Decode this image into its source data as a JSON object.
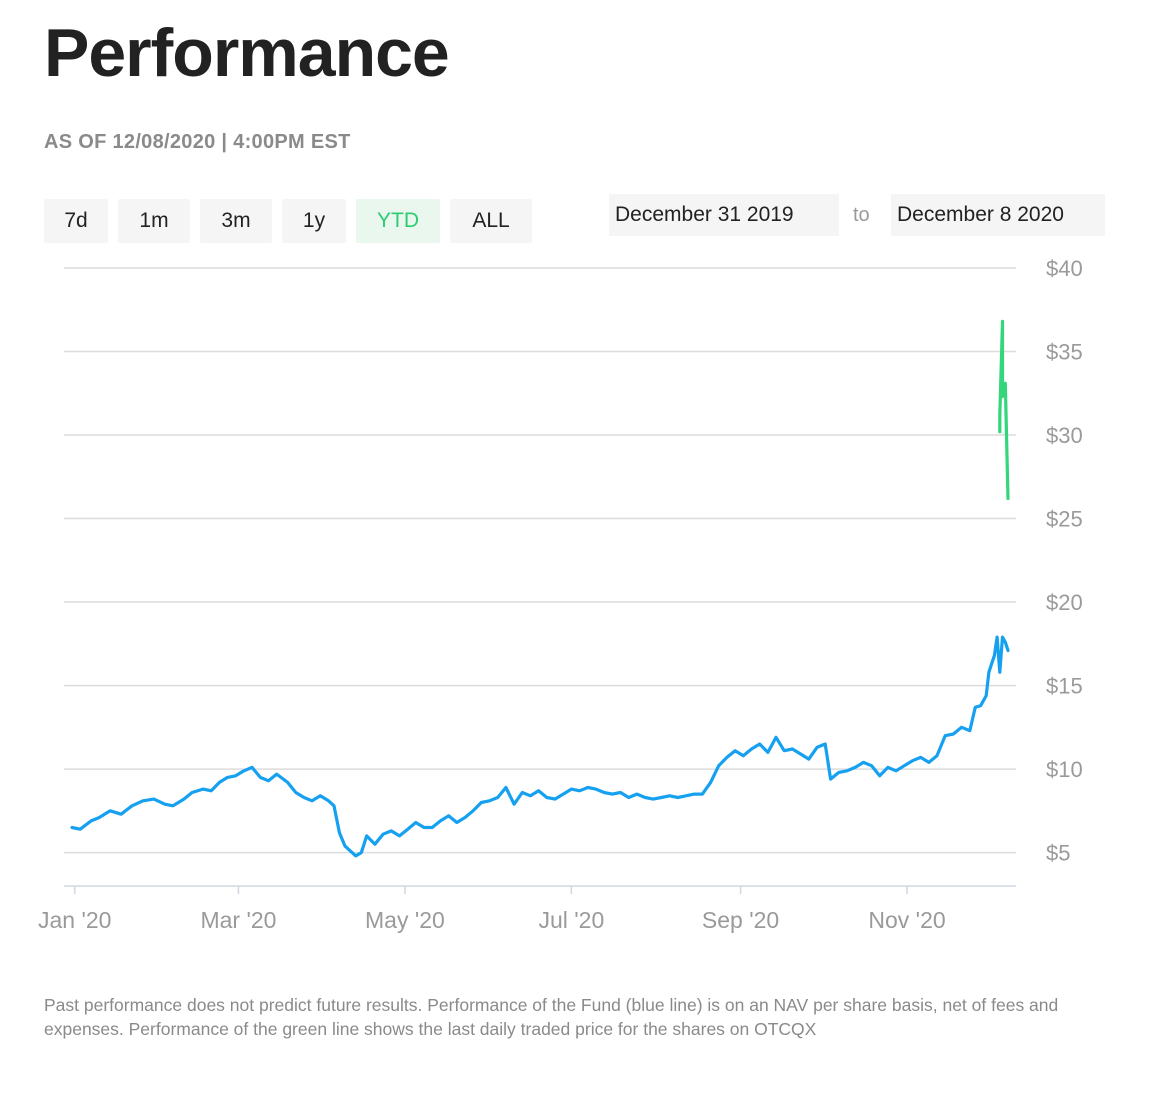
{
  "page": {
    "title": "Performance",
    "as_of": "AS OF 12/08/2020 | 4:00PM EST"
  },
  "ranges": {
    "buttons": [
      "7d",
      "1m",
      "3m",
      "1y",
      "YTD",
      "ALL"
    ],
    "selected": "YTD"
  },
  "date_range": {
    "start": "December 31 2019",
    "to_label": "to",
    "end": "December 8 2020"
  },
  "colors": {
    "nav_line": "#16a0f0",
    "price_line": "#33d67a",
    "grid": "#dcdcdc",
    "axis_text": "#9a9a9a",
    "active_button_text": "#2ecc71"
  },
  "chart_data": {
    "type": "line",
    "ylim": [
      3,
      40
    ],
    "y_ticks": [
      5,
      10,
      15,
      20,
      25,
      30,
      35,
      40
    ],
    "y_tick_labels": [
      "$5",
      "$10",
      "$15",
      "$20",
      "$25",
      "$30",
      "$35",
      "$40"
    ],
    "x_ticks": [
      "2020-01-01",
      "2020-03-01",
      "2020-05-01",
      "2020-07-01",
      "2020-09-01",
      "2020-11-01"
    ],
    "x_tick_labels": [
      "Jan '20",
      "Mar '20",
      "May '20",
      "Jul '20",
      "Sep '20",
      "Nov '20"
    ],
    "xlim": [
      "2019-12-31",
      "2020-12-08"
    ],
    "grid": true,
    "series": [
      {
        "color": "#16a0f0",
        "points": [
          [
            "2019-12-31",
            6.5
          ],
          [
            "2020-01-03",
            6.4
          ],
          [
            "2020-01-07",
            6.9
          ],
          [
            "2020-01-10",
            7.1
          ],
          [
            "2020-01-14",
            7.5
          ],
          [
            "2020-01-18",
            7.3
          ],
          [
            "2020-01-22",
            7.8
          ],
          [
            "2020-01-26",
            8.1
          ],
          [
            "2020-01-30",
            8.2
          ],
          [
            "2020-02-03",
            7.9
          ],
          [
            "2020-02-06",
            7.8
          ],
          [
            "2020-02-10",
            8.2
          ],
          [
            "2020-02-13",
            8.6
          ],
          [
            "2020-02-17",
            8.8
          ],
          [
            "2020-02-20",
            8.7
          ],
          [
            "2020-02-23",
            9.2
          ],
          [
            "2020-02-26",
            9.5
          ],
          [
            "2020-02-29",
            9.6
          ],
          [
            "2020-03-03",
            9.9
          ],
          [
            "2020-03-06",
            10.1
          ],
          [
            "2020-03-09",
            9.5
          ],
          [
            "2020-03-12",
            9.3
          ],
          [
            "2020-03-15",
            9.7
          ],
          [
            "2020-03-19",
            9.2
          ],
          [
            "2020-03-22",
            8.6
          ],
          [
            "2020-03-25",
            8.3
          ],
          [
            "2020-03-28",
            8.1
          ],
          [
            "2020-03-31",
            8.4
          ],
          [
            "2020-04-03",
            8.1
          ],
          [
            "2020-04-05",
            7.8
          ],
          [
            "2020-04-07",
            6.2
          ],
          [
            "2020-04-09",
            5.4
          ],
          [
            "2020-04-11",
            5.1
          ],
          [
            "2020-04-13",
            4.8
          ],
          [
            "2020-04-15",
            5.0
          ],
          [
            "2020-04-17",
            6.0
          ],
          [
            "2020-04-20",
            5.5
          ],
          [
            "2020-04-23",
            6.1
          ],
          [
            "2020-04-26",
            6.3
          ],
          [
            "2020-04-29",
            6.0
          ],
          [
            "2020-05-02",
            6.4
          ],
          [
            "2020-05-05",
            6.8
          ],
          [
            "2020-05-08",
            6.5
          ],
          [
            "2020-05-11",
            6.5
          ],
          [
            "2020-05-14",
            6.9
          ],
          [
            "2020-05-17",
            7.2
          ],
          [
            "2020-05-20",
            6.8
          ],
          [
            "2020-05-23",
            7.1
          ],
          [
            "2020-05-26",
            7.5
          ],
          [
            "2020-05-29",
            8.0
          ],
          [
            "2020-06-01",
            8.1
          ],
          [
            "2020-06-04",
            8.3
          ],
          [
            "2020-06-07",
            8.9
          ],
          [
            "2020-06-10",
            7.9
          ],
          [
            "2020-06-13",
            8.6
          ],
          [
            "2020-06-16",
            8.4
          ],
          [
            "2020-06-19",
            8.7
          ],
          [
            "2020-06-22",
            8.3
          ],
          [
            "2020-06-25",
            8.2
          ],
          [
            "2020-06-28",
            8.5
          ],
          [
            "2020-07-01",
            8.8
          ],
          [
            "2020-07-04",
            8.7
          ],
          [
            "2020-07-07",
            8.9
          ],
          [
            "2020-07-10",
            8.8
          ],
          [
            "2020-07-13",
            8.6
          ],
          [
            "2020-07-16",
            8.5
          ],
          [
            "2020-07-19",
            8.6
          ],
          [
            "2020-07-22",
            8.3
          ],
          [
            "2020-07-25",
            8.5
          ],
          [
            "2020-07-28",
            8.3
          ],
          [
            "2020-07-31",
            8.2
          ],
          [
            "2020-08-03",
            8.3
          ],
          [
            "2020-08-06",
            8.4
          ],
          [
            "2020-08-09",
            8.3
          ],
          [
            "2020-08-12",
            8.4
          ],
          [
            "2020-08-15",
            8.5
          ],
          [
            "2020-08-18",
            8.5
          ],
          [
            "2020-08-21",
            9.2
          ],
          [
            "2020-08-24",
            10.2
          ],
          [
            "2020-08-27",
            10.7
          ],
          [
            "2020-08-30",
            11.1
          ],
          [
            "2020-09-02",
            10.8
          ],
          [
            "2020-09-05",
            11.2
          ],
          [
            "2020-09-08",
            11.5
          ],
          [
            "2020-09-11",
            11.0
          ],
          [
            "2020-09-14",
            11.9
          ],
          [
            "2020-09-17",
            11.1
          ],
          [
            "2020-09-20",
            11.2
          ],
          [
            "2020-09-23",
            10.9
          ],
          [
            "2020-09-26",
            10.6
          ],
          [
            "2020-09-29",
            11.3
          ],
          [
            "2020-10-02",
            11.5
          ],
          [
            "2020-10-04",
            9.4
          ],
          [
            "2020-10-07",
            9.8
          ],
          [
            "2020-10-10",
            9.9
          ],
          [
            "2020-10-13",
            10.1
          ],
          [
            "2020-10-16",
            10.4
          ],
          [
            "2020-10-19",
            10.2
          ],
          [
            "2020-10-22",
            9.6
          ],
          [
            "2020-10-25",
            10.1
          ],
          [
            "2020-10-28",
            9.9
          ],
          [
            "2020-10-31",
            10.2
          ],
          [
            "2020-11-03",
            10.5
          ],
          [
            "2020-11-06",
            10.7
          ],
          [
            "2020-11-09",
            10.4
          ],
          [
            "2020-11-12",
            10.8
          ],
          [
            "2020-11-15",
            12.0
          ],
          [
            "2020-11-18",
            12.1
          ],
          [
            "2020-11-21",
            12.5
          ],
          [
            "2020-11-24",
            12.3
          ],
          [
            "2020-11-26",
            13.7
          ],
          [
            "2020-11-28",
            13.8
          ],
          [
            "2020-11-30",
            14.4
          ],
          [
            "2020-12-01",
            15.8
          ],
          [
            "2020-12-02",
            16.3
          ],
          [
            "2020-12-03",
            16.8
          ],
          [
            "2020-12-04",
            17.9
          ],
          [
            "2020-12-05",
            15.8
          ],
          [
            "2020-12-06",
            17.9
          ],
          [
            "2020-12-07",
            17.6
          ],
          [
            "2020-12-08",
            17.1
          ]
        ]
      },
      {
        "color": "#33d67a",
        "points": [
          [
            "2020-12-05",
            30.2
          ],
          [
            "2020-12-05",
            31.2
          ],
          [
            "2020-12-06",
            36.8
          ],
          [
            "2020-12-06",
            32.3
          ],
          [
            "2020-12-07",
            33.1
          ],
          [
            "2020-12-08",
            26.2
          ]
        ]
      }
    ]
  },
  "disclaimer": "Past performance does not predict future results. Performance of the Fund (blue line) is on an NAV per share basis, net of fees and expenses. Performance of the green line shows the last daily traded price for the shares on OTCQX"
}
